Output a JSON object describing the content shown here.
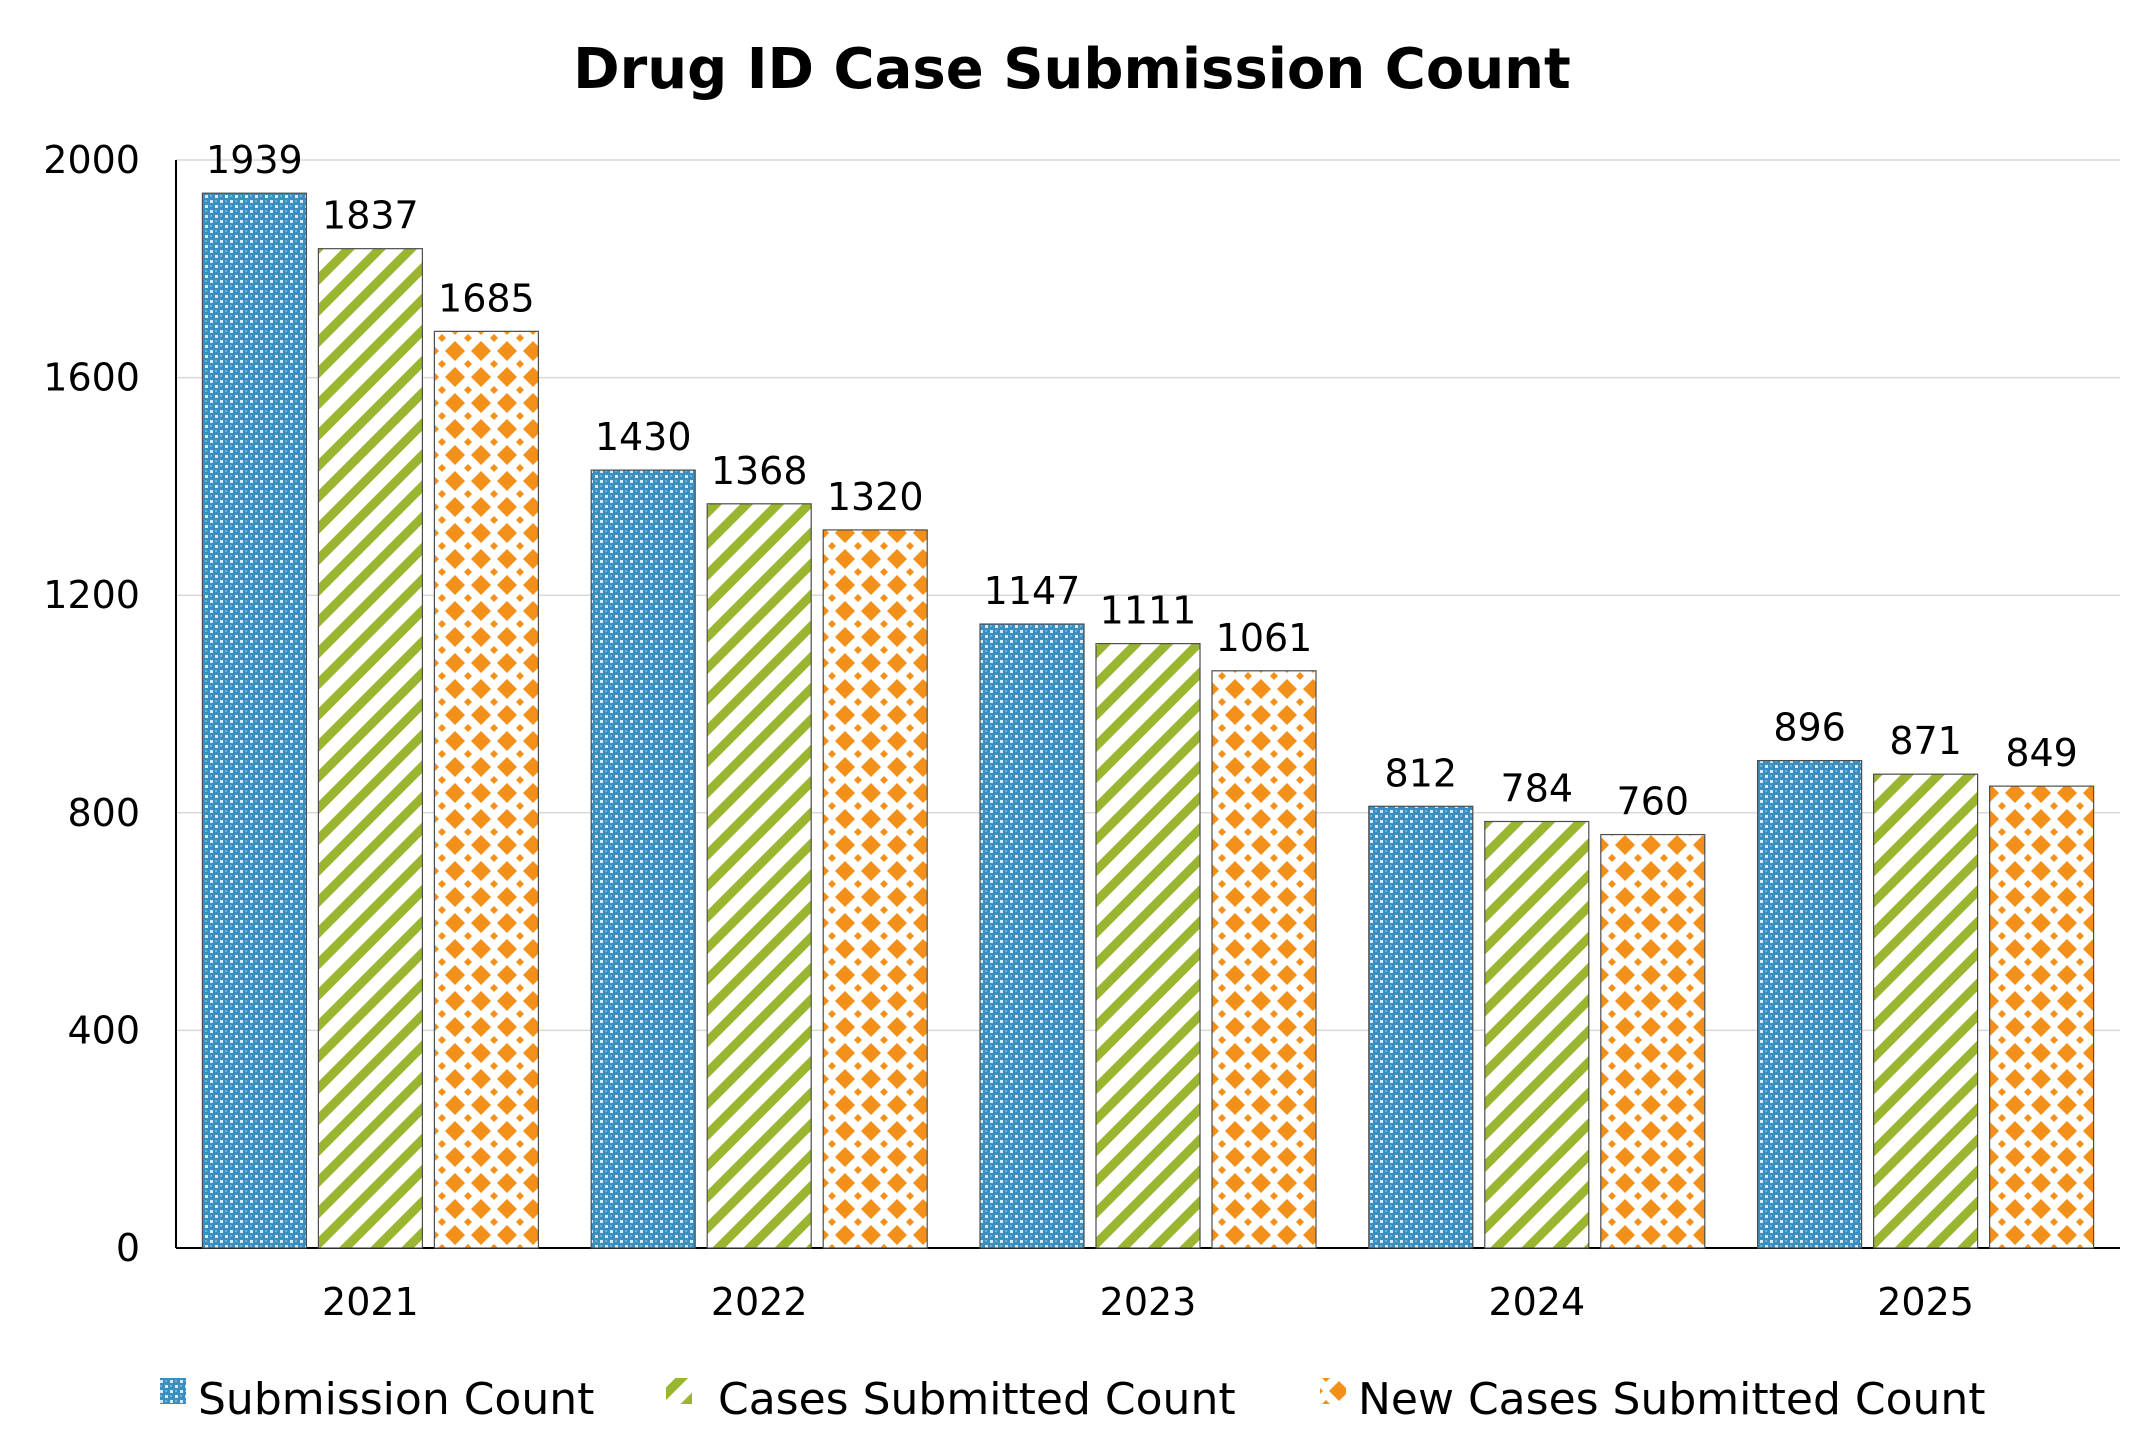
{
  "chart_data": {
    "type": "bar",
    "title": "Drug ID Case Submission Count",
    "xlabel": "",
    "ylabel": "",
    "categories": [
      "2021",
      "2022",
      "2023",
      "2024",
      "2025"
    ],
    "ylim": [
      0,
      2000
    ],
    "yticks": [
      0,
      400,
      800,
      1200,
      1600,
      2000
    ],
    "grid": true,
    "legend_position": "bottom",
    "series": [
      {
        "name": "Submission Count",
        "values": [
          1939,
          1430,
          1147,
          812,
          896
        ],
        "color": "#3a8fc0",
        "pattern": "checker"
      },
      {
        "name": "Cases Submitted Count",
        "values": [
          1837,
          1368,
          1111,
          784,
          871
        ],
        "color": "#9ab52f",
        "pattern": "diagonal-stripes"
      },
      {
        "name": "New Cases Submitted Count",
        "values": [
          1685,
          1320,
          1061,
          760,
          849
        ],
        "color": "#f39019",
        "pattern": "diamonds"
      }
    ]
  }
}
